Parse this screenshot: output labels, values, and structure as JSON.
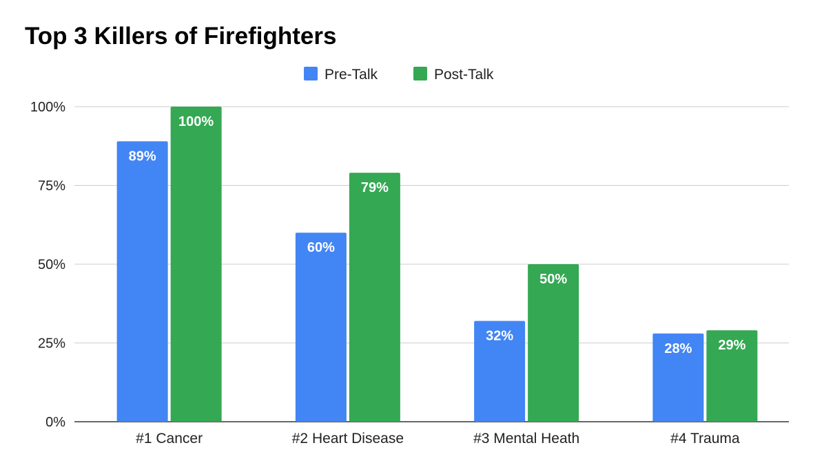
{
  "chart_data": {
    "type": "bar",
    "title": "Top 3 Killers of Firefighters",
    "categories": [
      "#1 Cancer",
      "#2 Heart Disease",
      "#3 Mental Heath",
      "#4 Trauma"
    ],
    "series": [
      {
        "name": "Pre-Talk",
        "color": "#4285F4",
        "values": [
          89,
          60,
          32,
          28
        ],
        "labels": [
          "89%",
          "60%",
          "32%",
          "28%"
        ]
      },
      {
        "name": "Post-Talk",
        "color": "#34A853",
        "values": [
          100,
          79,
          50,
          29
        ],
        "labels": [
          "100%",
          "79%",
          "50%",
          "29%"
        ]
      }
    ],
    "yticks": [
      0,
      25,
      50,
      75,
      100
    ],
    "ytick_labels": [
      "0%",
      "25%",
      "50%",
      "75%",
      "100%"
    ],
    "ylim": [
      0,
      100
    ],
    "xlabel": "",
    "ylabel": "",
    "grid": true,
    "legend_position": "top-center"
  }
}
